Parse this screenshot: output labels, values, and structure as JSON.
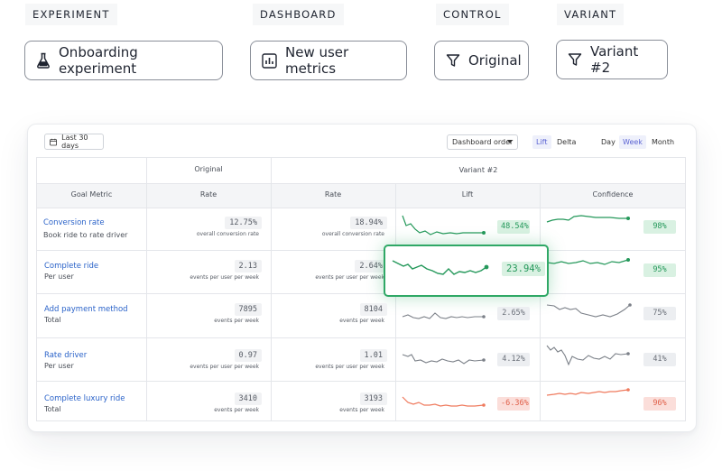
{
  "captions": {
    "experiment": "EXPERIMENT",
    "dashboard": "DASHBOARD",
    "control": "CONTROL",
    "variant": "VARIANT"
  },
  "pills": {
    "experiment": "Onboarding experiment",
    "dashboard": "New user metrics",
    "control": "Original",
    "variant": "Variant #2"
  },
  "icons": {
    "experiment": "flask-icon",
    "dashboard": "bar-chart-icon",
    "control": "filter-icon",
    "variant": "filter-icon",
    "range": "calendar-icon",
    "order": "chevron-down-icon"
  },
  "toolbar": {
    "range": "Last 30 days",
    "order": "Dashboard order",
    "lift": "Lift",
    "delta": "Delta",
    "day": "Day",
    "week": "Week",
    "month": "Month",
    "active_mode": "Lift",
    "active_period": "Week"
  },
  "table": {
    "group_original": "Original",
    "group_variant": "Variant #2",
    "col_metric": "Goal Metric",
    "col_rate": "Rate",
    "col_rate2": "Rate",
    "col_lift": "Lift",
    "col_confidence": "Confidence",
    "rows": [
      {
        "name": "Conversion rate",
        "sub": "Book ride to rate driver",
        "orig": "12.75%",
        "orig_sub": "overall conversion rate",
        "var": "18.94%",
        "var_sub": "overall conversion rate",
        "lift": "48.54%",
        "conf": "98%",
        "status": "positive"
      },
      {
        "name": "Complete ride",
        "sub": "Per user",
        "orig": "2.13",
        "orig_sub": "events per user per week",
        "var": "2.64%",
        "var_sub": "events per user per week",
        "lift": "23.94%",
        "conf": "95%",
        "status": "positive",
        "highlighted": true
      },
      {
        "name": "Add payment method",
        "sub": "Total",
        "orig": "7895",
        "orig_sub": "events per week",
        "var": "8104",
        "var_sub": "events per week",
        "lift": "2.65%",
        "conf": "75%",
        "status": "neutral"
      },
      {
        "name": "Rate driver",
        "sub": "Per user",
        "orig": "0.97",
        "orig_sub": "events per user per week",
        "var": "1.01",
        "var_sub": "events per user per week",
        "lift": "4.12%",
        "conf": "41%",
        "status": "neutral"
      },
      {
        "name": "Complete luxury ride",
        "sub": "Total",
        "orig": "3410",
        "orig_sub": "events per week",
        "var": "3193",
        "var_sub": "events per week",
        "lift": "-6.36%",
        "conf": "96%",
        "status": "negative"
      }
    ]
  },
  "colors": {
    "positive": "#24985a",
    "neutral": "#7b8088",
    "negative": "#ef7a5d",
    "highlight_border": "#2fa866",
    "link": "#2b63c9",
    "accent": "#5b63d3"
  }
}
